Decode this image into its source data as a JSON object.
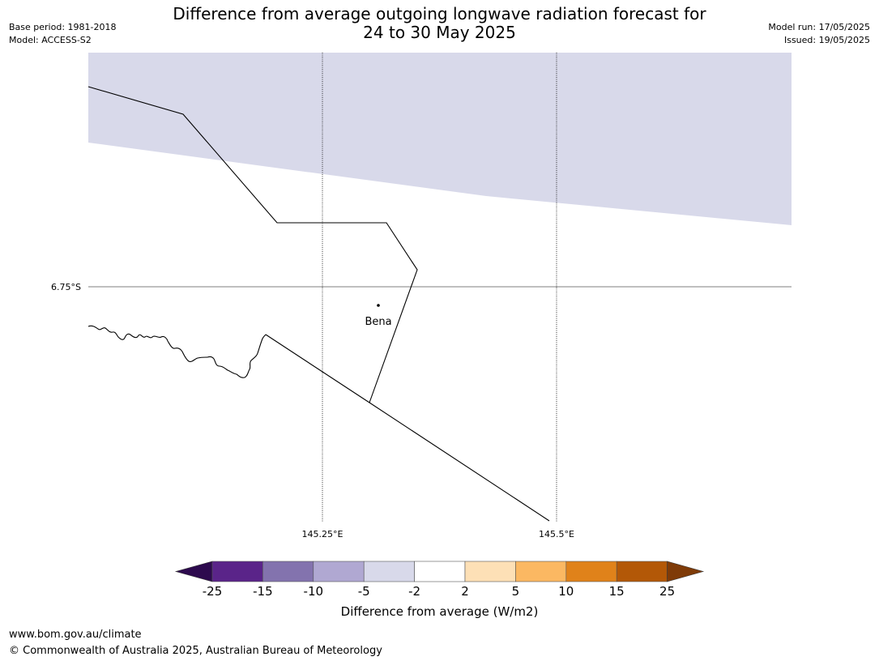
{
  "header": {
    "title_line1": "Difference from average outgoing longwave radiation forecast for",
    "title_line2": "24 to 30 May 2025",
    "base_period": "Base period: 1981-2018",
    "model": "Model: ACCESS-S2",
    "model_run": "Model run: 17/05/2025",
    "issued": "Issued: 19/05/2025"
  },
  "map": {
    "lat_labels": [
      "6.75°S"
    ],
    "lon_labels": [
      "145.25°E",
      "145.5°E"
    ],
    "place": {
      "name": "Bena"
    },
    "shading_color": "#d8d9ea"
  },
  "colorbar": {
    "label": "Difference from average (W/m2)",
    "ticks": [
      "-25",
      "-15",
      "-10",
      "-5",
      "-2",
      "2",
      "5",
      "10",
      "15",
      "25"
    ],
    "colors": [
      "#5a2489",
      "#8373ae",
      "#b0a8d2",
      "#d8d9ea",
      "#ffffff",
      "#fde0b6",
      "#fbb862",
      "#e0821a",
      "#b35807"
    ],
    "under_color": "#2d0a4e",
    "over_color": "#7f3b08"
  },
  "footer": {
    "url": "www.bom.gov.au/climate",
    "copyright": "© Commonwealth of Australia 2025, Australian Bureau of Meteorology"
  }
}
